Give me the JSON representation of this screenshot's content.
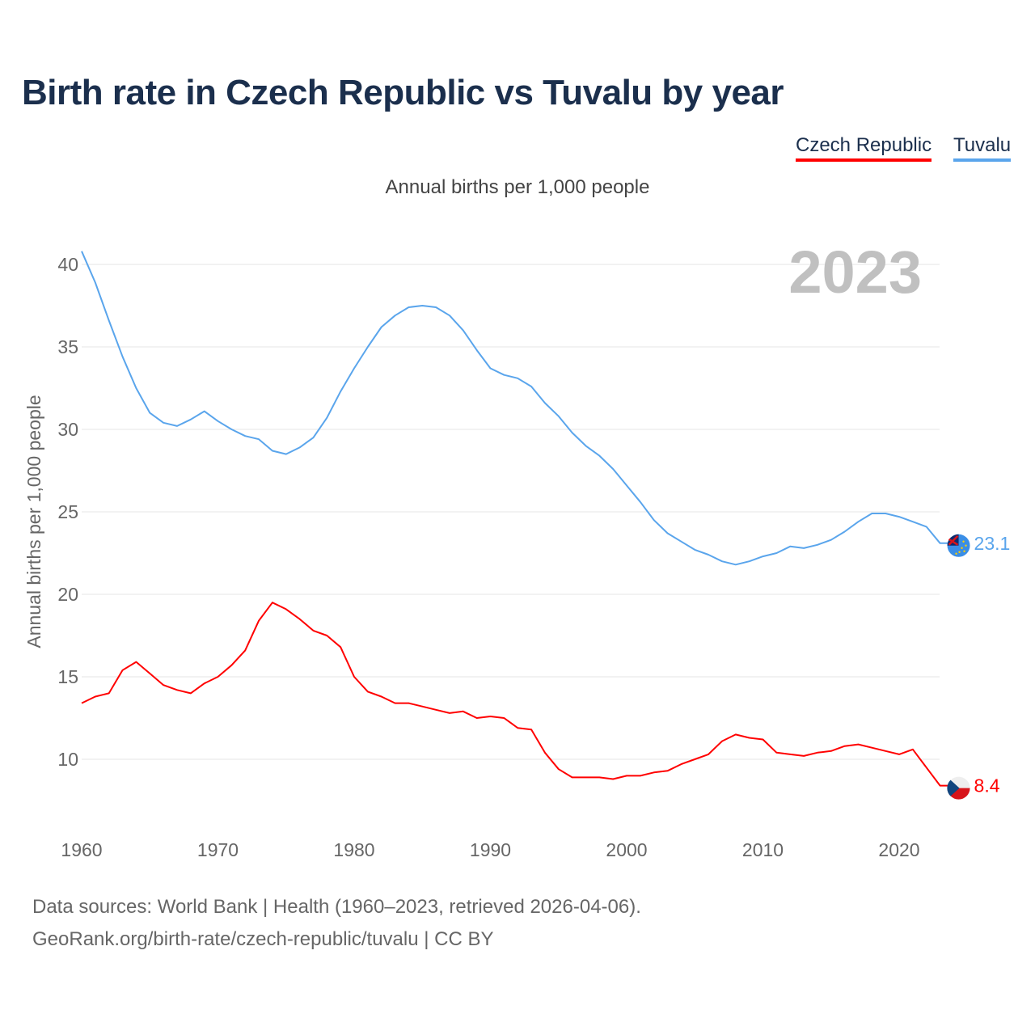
{
  "title": "Birth rate in Czech Republic vs Tuvalu by year",
  "footer": {
    "line1": "Data sources: World Bank | Health (1960–2023, retrieved 2026-04-06).",
    "line2": "GeoRank.org/birth-rate/czech-republic/tuvalu | CC BY"
  },
  "chart_data": {
    "type": "line",
    "title": "Birth rate in Czech Republic vs Tuvalu by year",
    "subtitle": "Annual births per 1,000 people",
    "ylabel": "Annual births per 1,000 people",
    "xlabel": "",
    "year_label": "2023",
    "xlim": [
      1960,
      2023
    ],
    "ylim": [
      7,
      41
    ],
    "grid": true,
    "legend_position": "top-right",
    "x_ticks": [
      1960,
      1970,
      1980,
      1990,
      2000,
      2010,
      2020
    ],
    "y_ticks": [
      10,
      15,
      20,
      25,
      30,
      35,
      40
    ],
    "x": [
      1960,
      1961,
      1962,
      1963,
      1964,
      1965,
      1966,
      1967,
      1968,
      1969,
      1970,
      1971,
      1972,
      1973,
      1974,
      1975,
      1976,
      1977,
      1978,
      1979,
      1980,
      1981,
      1982,
      1983,
      1984,
      1985,
      1986,
      1987,
      1988,
      1989,
      1990,
      1991,
      1992,
      1993,
      1994,
      1995,
      1996,
      1997,
      1998,
      1999,
      2000,
      2001,
      2002,
      2003,
      2004,
      2005,
      2006,
      2007,
      2008,
      2009,
      2010,
      2011,
      2012,
      2013,
      2014,
      2015,
      2016,
      2017,
      2018,
      2019,
      2020,
      2021,
      2022,
      2023
    ],
    "series": [
      {
        "name": "Czech Republic",
        "color": "#ff0000",
        "last_label": "8.4",
        "values": [
          13.4,
          13.8,
          14.0,
          15.4,
          15.9,
          15.2,
          14.5,
          14.2,
          14.0,
          14.6,
          15.0,
          15.7,
          16.6,
          18.4,
          19.5,
          19.1,
          18.5,
          17.8,
          17.5,
          16.8,
          15.0,
          14.1,
          13.8,
          13.4,
          13.4,
          13.2,
          13.0,
          12.8,
          12.9,
          12.5,
          12.6,
          12.5,
          11.9,
          11.8,
          10.4,
          9.4,
          8.9,
          8.9,
          8.9,
          8.8,
          9.0,
          9.0,
          9.2,
          9.3,
          9.7,
          10.0,
          10.3,
          11.1,
          11.5,
          11.3,
          11.2,
          10.4,
          10.3,
          10.2,
          10.4,
          10.5,
          10.8,
          10.9,
          10.7,
          10.5,
          10.3,
          10.6,
          9.5,
          8.4
        ]
      },
      {
        "name": "Tuvalu",
        "color": "#5aa5ec",
        "last_label": "23.1",
        "values": [
          40.8,
          38.9,
          36.6,
          34.4,
          32.5,
          31.0,
          30.4,
          30.2,
          30.6,
          31.1,
          30.5,
          30.0,
          29.6,
          29.4,
          28.7,
          28.5,
          28.9,
          29.5,
          30.7,
          32.3,
          33.7,
          35.0,
          36.2,
          36.9,
          37.4,
          37.5,
          37.4,
          36.9,
          36.0,
          34.8,
          33.7,
          33.3,
          33.1,
          32.6,
          31.6,
          30.8,
          29.8,
          29.0,
          28.4,
          27.6,
          26.6,
          25.6,
          24.5,
          23.7,
          23.2,
          22.7,
          22.4,
          22.0,
          21.8,
          22.0,
          22.3,
          22.5,
          22.9,
          22.8,
          23.0,
          23.3,
          23.8,
          24.4,
          24.9,
          24.9,
          24.7,
          24.4,
          24.1,
          23.1
        ]
      }
    ]
  }
}
